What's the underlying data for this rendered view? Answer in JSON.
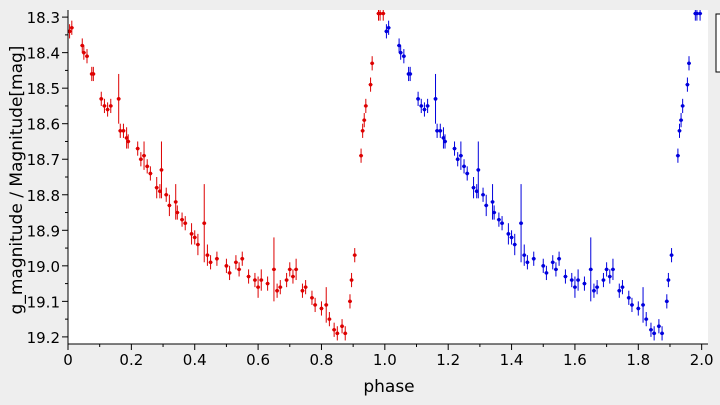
{
  "chart_data": {
    "type": "scatter",
    "xlabel": "phase",
    "ylabel": "g_magnitude / Magnitude[mag]",
    "xlim": [
      0,
      2.02
    ],
    "ylim": [
      18.28,
      19.22
    ],
    "y_inverted": true,
    "grid": false,
    "x_ticks": [
      0,
      0.2,
      0.4,
      0.6,
      0.8,
      1.0,
      1.2,
      1.4,
      1.6,
      1.8,
      2.0
    ],
    "x_tick_labels": [
      "0",
      "0.2",
      "0.4",
      "0.6",
      "0.8",
      "1.0",
      "1.2",
      "1.4",
      "1.6",
      "1.8",
      "2.0"
    ],
    "y_ticks": [
      18.3,
      18.4,
      18.5,
      18.6,
      18.7,
      18.8,
      18.9,
      19.0,
      19.1,
      19.2
    ],
    "y_tick_labels": [
      "18.3",
      "18.4",
      "18.5",
      "18.6",
      "18.7",
      "18.8",
      "18.9",
      "19.0",
      "19.1",
      "19.2"
    ],
    "series": [
      {
        "color": "#dd0000",
        "points": [
          {
            "x": 0.005,
            "y": 18.34,
            "err": 0.02
          },
          {
            "x": 0.012,
            "y": 18.33,
            "err": 0.02
          },
          {
            "x": 0.045,
            "y": 18.38,
            "err": 0.02
          },
          {
            "x": 0.05,
            "y": 18.4,
            "err": 0.02
          },
          {
            "x": 0.06,
            "y": 18.41,
            "err": 0.02
          },
          {
            "x": 0.075,
            "y": 18.46,
            "err": 0.02
          },
          {
            "x": 0.08,
            "y": 18.46,
            "err": 0.02
          },
          {
            "x": 0.105,
            "y": 18.53,
            "err": 0.02
          },
          {
            "x": 0.115,
            "y": 18.55,
            "err": 0.02
          },
          {
            "x": 0.125,
            "y": 18.56,
            "err": 0.02
          },
          {
            "x": 0.135,
            "y": 18.55,
            "err": 0.02
          },
          {
            "x": 0.16,
            "y": 18.53,
            "err": 0.07
          },
          {
            "x": 0.165,
            "y": 18.62,
            "err": 0.02
          },
          {
            "x": 0.175,
            "y": 18.62,
            "err": 0.02
          },
          {
            "x": 0.185,
            "y": 18.64,
            "err": 0.03
          },
          {
            "x": 0.19,
            "y": 18.65,
            "err": 0.02
          },
          {
            "x": 0.22,
            "y": 18.67,
            "err": 0.02
          },
          {
            "x": 0.23,
            "y": 18.7,
            "err": 0.02
          },
          {
            "x": 0.24,
            "y": 18.69,
            "err": 0.04
          },
          {
            "x": 0.25,
            "y": 18.72,
            "err": 0.02
          },
          {
            "x": 0.26,
            "y": 18.74,
            "err": 0.02
          },
          {
            "x": 0.28,
            "y": 18.78,
            "err": 0.03
          },
          {
            "x": 0.29,
            "y": 18.79,
            "err": 0.02
          },
          {
            "x": 0.295,
            "y": 18.73,
            "err": 0.08
          },
          {
            "x": 0.31,
            "y": 18.8,
            "err": 0.02
          },
          {
            "x": 0.32,
            "y": 18.83,
            "err": 0.03
          },
          {
            "x": 0.34,
            "y": 18.82,
            "err": 0.05
          },
          {
            "x": 0.345,
            "y": 18.85,
            "err": 0.02
          },
          {
            "x": 0.36,
            "y": 18.87,
            "err": 0.02
          },
          {
            "x": 0.37,
            "y": 18.88,
            "err": 0.02
          },
          {
            "x": 0.39,
            "y": 18.91,
            "err": 0.03
          },
          {
            "x": 0.4,
            "y": 18.92,
            "err": 0.02
          },
          {
            "x": 0.41,
            "y": 18.94,
            "err": 0.03
          },
          {
            "x": 0.43,
            "y": 18.88,
            "err": 0.11
          },
          {
            "x": 0.44,
            "y": 18.97,
            "err": 0.03
          },
          {
            "x": 0.45,
            "y": 18.99,
            "err": 0.02
          },
          {
            "x": 0.47,
            "y": 18.98,
            "err": 0.02
          },
          {
            "x": 0.5,
            "y": 19.0,
            "err": 0.02
          },
          {
            "x": 0.51,
            "y": 19.02,
            "err": 0.02
          },
          {
            "x": 0.53,
            "y": 18.99,
            "err": 0.02
          },
          {
            "x": 0.54,
            "y": 19.01,
            "err": 0.02
          },
          {
            "x": 0.55,
            "y": 18.98,
            "err": 0.02
          },
          {
            "x": 0.57,
            "y": 19.03,
            "err": 0.02
          },
          {
            "x": 0.59,
            "y": 19.04,
            "err": 0.02
          },
          {
            "x": 0.6,
            "y": 19.06,
            "err": 0.03
          },
          {
            "x": 0.61,
            "y": 19.04,
            "err": 0.03
          },
          {
            "x": 0.63,
            "y": 19.05,
            "err": 0.02
          },
          {
            "x": 0.65,
            "y": 19.01,
            "err": 0.09
          },
          {
            "x": 0.66,
            "y": 19.07,
            "err": 0.02
          },
          {
            "x": 0.67,
            "y": 19.06,
            "err": 0.02
          },
          {
            "x": 0.69,
            "y": 19.04,
            "err": 0.02
          },
          {
            "x": 0.7,
            "y": 19.01,
            "err": 0.02
          },
          {
            "x": 0.71,
            "y": 19.03,
            "err": 0.02
          },
          {
            "x": 0.72,
            "y": 19.01,
            "err": 0.03
          },
          {
            "x": 0.74,
            "y": 19.07,
            "err": 0.02
          },
          {
            "x": 0.75,
            "y": 19.06,
            "err": 0.02
          },
          {
            "x": 0.77,
            "y": 19.09,
            "err": 0.02
          },
          {
            "x": 0.78,
            "y": 19.11,
            "err": 0.02
          },
          {
            "x": 0.8,
            "y": 19.12,
            "err": 0.02
          },
          {
            "x": 0.815,
            "y": 19.11,
            "err": 0.05
          },
          {
            "x": 0.825,
            "y": 19.15,
            "err": 0.02
          },
          {
            "x": 0.84,
            "y": 19.18,
            "err": 0.02
          },
          {
            "x": 0.85,
            "y": 19.19,
            "err": 0.02
          },
          {
            "x": 0.865,
            "y": 19.17,
            "err": 0.02
          },
          {
            "x": 0.875,
            "y": 19.19,
            "err": 0.02
          },
          {
            "x": 0.89,
            "y": 19.1,
            "err": 0.02
          },
          {
            "x": 0.895,
            "y": 19.04,
            "err": 0.02
          },
          {
            "x": 0.905,
            "y": 18.97,
            "err": 0.02
          },
          {
            "x": 0.925,
            "y": 18.69,
            "err": 0.02
          },
          {
            "x": 0.93,
            "y": 18.62,
            "err": 0.02
          },
          {
            "x": 0.935,
            "y": 18.59,
            "err": 0.02
          },
          {
            "x": 0.94,
            "y": 18.55,
            "err": 0.02
          },
          {
            "x": 0.955,
            "y": 18.49,
            "err": 0.02
          },
          {
            "x": 0.96,
            "y": 18.43,
            "err": 0.02
          },
          {
            "x": 0.98,
            "y": 18.29,
            "err": 0.02
          },
          {
            "x": 0.985,
            "y": 18.29,
            "err": 0.02
          },
          {
            "x": 0.995,
            "y": 18.29,
            "err": 0.02
          }
        ]
      },
      {
        "color": "#0000dd",
        "points": [
          {
            "x": 1.005,
            "y": 18.34,
            "err": 0.02
          },
          {
            "x": 1.012,
            "y": 18.33,
            "err": 0.02
          },
          {
            "x": 1.045,
            "y": 18.38,
            "err": 0.02
          },
          {
            "x": 1.05,
            "y": 18.4,
            "err": 0.02
          },
          {
            "x": 1.06,
            "y": 18.41,
            "err": 0.02
          },
          {
            "x": 1.075,
            "y": 18.46,
            "err": 0.02
          },
          {
            "x": 1.08,
            "y": 18.46,
            "err": 0.02
          },
          {
            "x": 1.105,
            "y": 18.53,
            "err": 0.02
          },
          {
            "x": 1.115,
            "y": 18.55,
            "err": 0.02
          },
          {
            "x": 1.125,
            "y": 18.56,
            "err": 0.02
          },
          {
            "x": 1.135,
            "y": 18.55,
            "err": 0.02
          },
          {
            "x": 1.16,
            "y": 18.53,
            "err": 0.07
          },
          {
            "x": 1.165,
            "y": 18.62,
            "err": 0.02
          },
          {
            "x": 1.175,
            "y": 18.62,
            "err": 0.02
          },
          {
            "x": 1.185,
            "y": 18.64,
            "err": 0.03
          },
          {
            "x": 1.19,
            "y": 18.65,
            "err": 0.02
          },
          {
            "x": 1.22,
            "y": 18.67,
            "err": 0.02
          },
          {
            "x": 1.23,
            "y": 18.7,
            "err": 0.02
          },
          {
            "x": 1.24,
            "y": 18.69,
            "err": 0.04
          },
          {
            "x": 1.25,
            "y": 18.72,
            "err": 0.02
          },
          {
            "x": 1.26,
            "y": 18.74,
            "err": 0.02
          },
          {
            "x": 1.28,
            "y": 18.78,
            "err": 0.03
          },
          {
            "x": 1.29,
            "y": 18.79,
            "err": 0.02
          },
          {
            "x": 1.295,
            "y": 18.73,
            "err": 0.08
          },
          {
            "x": 1.31,
            "y": 18.8,
            "err": 0.02
          },
          {
            "x": 1.32,
            "y": 18.83,
            "err": 0.03
          },
          {
            "x": 1.34,
            "y": 18.82,
            "err": 0.05
          },
          {
            "x": 1.345,
            "y": 18.85,
            "err": 0.02
          },
          {
            "x": 1.36,
            "y": 18.87,
            "err": 0.02
          },
          {
            "x": 1.37,
            "y": 18.88,
            "err": 0.02
          },
          {
            "x": 1.39,
            "y": 18.91,
            "err": 0.03
          },
          {
            "x": 1.4,
            "y": 18.92,
            "err": 0.02
          },
          {
            "x": 1.41,
            "y": 18.94,
            "err": 0.03
          },
          {
            "x": 1.43,
            "y": 18.88,
            "err": 0.11
          },
          {
            "x": 1.44,
            "y": 18.97,
            "err": 0.03
          },
          {
            "x": 1.45,
            "y": 18.99,
            "err": 0.02
          },
          {
            "x": 1.47,
            "y": 18.98,
            "err": 0.02
          },
          {
            "x": 1.5,
            "y": 19.0,
            "err": 0.02
          },
          {
            "x": 1.51,
            "y": 19.02,
            "err": 0.02
          },
          {
            "x": 1.53,
            "y": 18.99,
            "err": 0.02
          },
          {
            "x": 1.54,
            "y": 19.01,
            "err": 0.02
          },
          {
            "x": 1.55,
            "y": 18.98,
            "err": 0.02
          },
          {
            "x": 1.57,
            "y": 19.03,
            "err": 0.02
          },
          {
            "x": 1.59,
            "y": 19.04,
            "err": 0.02
          },
          {
            "x": 1.6,
            "y": 19.06,
            "err": 0.03
          },
          {
            "x": 1.61,
            "y": 19.04,
            "err": 0.03
          },
          {
            "x": 1.63,
            "y": 19.05,
            "err": 0.02
          },
          {
            "x": 1.65,
            "y": 19.01,
            "err": 0.09
          },
          {
            "x": 1.66,
            "y": 19.07,
            "err": 0.02
          },
          {
            "x": 1.67,
            "y": 19.06,
            "err": 0.02
          },
          {
            "x": 1.69,
            "y": 19.04,
            "err": 0.02
          },
          {
            "x": 1.7,
            "y": 19.01,
            "err": 0.02
          },
          {
            "x": 1.71,
            "y": 19.03,
            "err": 0.02
          },
          {
            "x": 1.72,
            "y": 19.01,
            "err": 0.03
          },
          {
            "x": 1.74,
            "y": 19.07,
            "err": 0.02
          },
          {
            "x": 1.75,
            "y": 19.06,
            "err": 0.02
          },
          {
            "x": 1.77,
            "y": 19.09,
            "err": 0.02
          },
          {
            "x": 1.78,
            "y": 19.11,
            "err": 0.02
          },
          {
            "x": 1.8,
            "y": 19.12,
            "err": 0.02
          },
          {
            "x": 1.815,
            "y": 19.11,
            "err": 0.05
          },
          {
            "x": 1.825,
            "y": 19.15,
            "err": 0.02
          },
          {
            "x": 1.84,
            "y": 19.18,
            "err": 0.02
          },
          {
            "x": 1.85,
            "y": 19.19,
            "err": 0.02
          },
          {
            "x": 1.865,
            "y": 19.17,
            "err": 0.02
          },
          {
            "x": 1.875,
            "y": 19.19,
            "err": 0.02
          },
          {
            "x": 1.89,
            "y": 19.1,
            "err": 0.02
          },
          {
            "x": 1.895,
            "y": 19.04,
            "err": 0.02
          },
          {
            "x": 1.905,
            "y": 18.97,
            "err": 0.02
          },
          {
            "x": 1.925,
            "y": 18.69,
            "err": 0.02
          },
          {
            "x": 1.93,
            "y": 18.62,
            "err": 0.02
          },
          {
            "x": 1.935,
            "y": 18.59,
            "err": 0.02
          },
          {
            "x": 1.94,
            "y": 18.55,
            "err": 0.02
          },
          {
            "x": 1.955,
            "y": 18.49,
            "err": 0.02
          },
          {
            "x": 1.96,
            "y": 18.43,
            "err": 0.02
          },
          {
            "x": 1.98,
            "y": 18.29,
            "err": 0.02
          },
          {
            "x": 1.985,
            "y": 18.29,
            "err": 0.02
          },
          {
            "x": 1.995,
            "y": 18.29,
            "err": 0.02
          }
        ]
      }
    ]
  }
}
